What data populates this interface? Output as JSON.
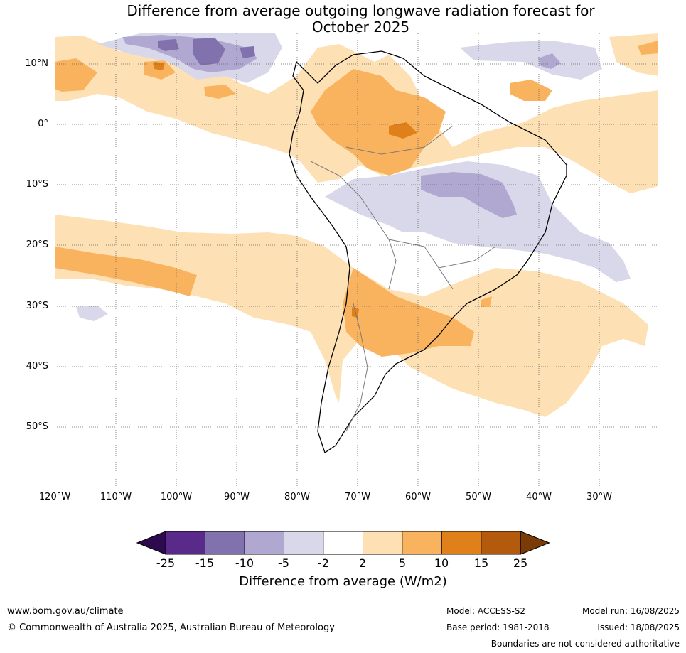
{
  "title_line1": "Difference from average outgoing longwave radiation forecast for",
  "title_line2": "October 2025",
  "lat_labels": [
    "10°N",
    "0°",
    "10°S",
    "20°S",
    "30°S",
    "40°S",
    "50°S"
  ],
  "lon_labels": [
    "120°W",
    "110°W",
    "100°W",
    "90°W",
    "80°W",
    "70°W",
    "60°W",
    "50°W",
    "40°W",
    "30°W"
  ],
  "legend": {
    "ticks": [
      "-25",
      "-15",
      "-10",
      "-5",
      "-2",
      "2",
      "5",
      "10",
      "15",
      "25"
    ],
    "label": "Difference from average (W/m2)",
    "colors": [
      "#2d0a4e",
      "#5a2a8a",
      "#8171ad",
      "#b0a8d0",
      "#d8d8ea",
      "#ffffff",
      "#fde0b4",
      "#f9b35e",
      "#e0801a",
      "#b35a0c",
      "#7a3b06"
    ]
  },
  "footer": {
    "website": "www.bom.gov.au/climate",
    "copyright": "© Commonwealth of Australia 2025, Australian Bureau of Meteorology",
    "model": "Model: ACCESS-S2",
    "base_period": "Base period: 1981-2018",
    "model_run": "Model run: 16/08/2025",
    "issued": "Issued: 18/08/2025",
    "disclaimer": "Boundaries are not considered authoritative"
  }
}
